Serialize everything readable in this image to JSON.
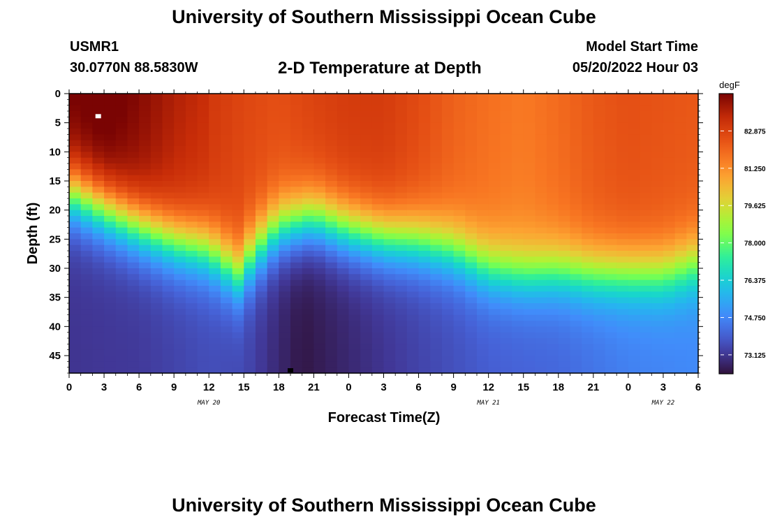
{
  "header": {
    "title": "University of Southern Mississippi Ocean Cube",
    "station_name": "USMR1",
    "station_coords": "30.0770N  88.5830W",
    "chart_title": "2-D Temperature at Depth",
    "model_start_label": "Model Start Time",
    "model_start_time": "05/20/2022 Hour 03"
  },
  "footer": {
    "title": "University of Southern Mississippi Ocean Cube"
  },
  "chart_data": {
    "type": "heatmap",
    "title": "2-D Temperature at Depth",
    "xlabel": "Forecast Time(Z)",
    "ylabel": "Depth (ft)",
    "x_ticks": [
      "0",
      "3",
      "6",
      "9",
      "12",
      "15",
      "18",
      "21",
      "0",
      "3",
      "6",
      "9",
      "12",
      "15",
      "18",
      "21",
      "0",
      "3",
      "6"
    ],
    "y_ticks": [
      "0",
      "5",
      "10",
      "15",
      "20",
      "25",
      "30",
      "35",
      "40",
      "45"
    ],
    "y_range_ft": [
      0,
      48
    ],
    "x_range_hours": [
      0,
      54
    ],
    "date_labels": [
      {
        "text": "MAY 20",
        "hour": 12
      },
      {
        "text": "MAY 21",
        "hour": 36
      },
      {
        "text": "MAY 22",
        "hour": 51
      }
    ],
    "colorbar": {
      "unit": "degF",
      "ticks": [
        "82.875",
        "81.250",
        "79.625",
        "78.000",
        "76.375",
        "74.750",
        "73.125"
      ],
      "min": 72.3,
      "max": 84.5
    },
    "thermocline_depth_ft": {
      "hours": [
        0,
        3,
        6,
        9,
        12,
        14.5,
        16,
        18,
        21,
        24,
        27,
        30,
        33,
        36,
        39,
        42,
        45,
        48,
        51,
        54
      ],
      "values": [
        17,
        20,
        23,
        25.5,
        27,
        31,
        27,
        23,
        21.5,
        23.5,
        25,
        25.5,
        27,
        30,
        31,
        30.5,
        31,
        31,
        31,
        29
      ]
    },
    "surface_temp_degF": {
      "hours": [
        0,
        3,
        6,
        9,
        12,
        15,
        18,
        21,
        24,
        27,
        30,
        33,
        36,
        39,
        42,
        45,
        48,
        51,
        54
      ],
      "values": [
        84.2,
        84.5,
        84.0,
        83.4,
        83.0,
        82.6,
        82.4,
        82.7,
        82.9,
        82.9,
        82.5,
        82.0,
        81.7,
        81.5,
        81.8,
        82.2,
        82.4,
        82.3,
        82.2
      ]
    },
    "bottom_temp_degF": {
      "hours": [
        0,
        6,
        12,
        15,
        18,
        20,
        24,
        30,
        36,
        42,
        48,
        54
      ],
      "values": [
        73.1,
        73.2,
        73.6,
        73.5,
        72.8,
        72.4,
        72.8,
        73.4,
        73.9,
        74.1,
        74.6,
        74.8
      ]
    },
    "markers": [
      {
        "name": "max-marker",
        "hour": 2.5,
        "depth_ft": 4,
        "color": "#ffffff"
      },
      {
        "name": "min-marker",
        "hour": 19,
        "depth_ft": 48,
        "color": "#000000"
      }
    ]
  }
}
